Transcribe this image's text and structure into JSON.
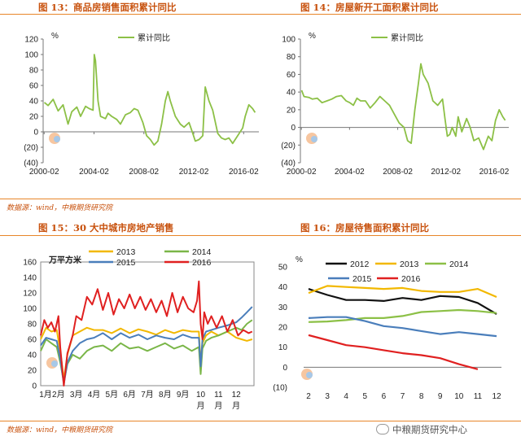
{
  "page": {
    "source_top": "数据源：wind，中粮期货研究院",
    "source_bottom": "数据源：wind，中粮期货研究院",
    "watermark": "中粮期货研究中心",
    "colors": {
      "accent": "#c8520e",
      "rule": "#e8862a"
    }
  },
  "chart_data": [
    {
      "id": "fig13",
      "type": "line",
      "title": "图 13：商品房销售面积累计同比",
      "ylabel": "%",
      "ylim": [
        -40,
        120
      ],
      "yticks": [
        "120",
        "100",
        "80",
        "60",
        "40",
        "20",
        "0",
        "(20)",
        "(40)"
      ],
      "ytick_values": [
        120,
        100,
        80,
        60,
        40,
        20,
        0,
        -20,
        -40
      ],
      "xlim": [
        2000.0,
        2017.3
      ],
      "xticks": [
        "2000-02",
        "2004-02",
        "2008-02",
        "2012-02",
        "2016-02"
      ],
      "xtick_values": [
        2000.08,
        2004.08,
        2008.08,
        2012.08,
        2016.08
      ],
      "series": [
        {
          "name": "累计同比",
          "color": "#8cc046",
          "x": [
            2000.1,
            2000.4,
            2000.8,
            2001.2,
            2001.6,
            2002.0,
            2002.3,
            2002.7,
            2003.0,
            2003.4,
            2003.7,
            2004.0,
            2004.1,
            2004.2,
            2004.4,
            2004.6,
            2005.0,
            2005.2,
            2005.5,
            2005.9,
            2006.2,
            2006.6,
            2007.0,
            2007.3,
            2007.6,
            2008.0,
            2008.3,
            2008.6,
            2008.9,
            2009.2,
            2009.5,
            2009.8,
            2010.0,
            2010.2,
            2010.6,
            2011.0,
            2011.3,
            2011.7,
            2012.0,
            2012.2,
            2012.5,
            2012.8,
            2013.0,
            2013.3,
            2013.6,
            2014.0,
            2014.3,
            2014.6,
            2014.9,
            2015.2,
            2015.6,
            2016.0,
            2016.2,
            2016.5,
            2016.8,
            2017.0
          ],
          "y": [
            38,
            34,
            42,
            27,
            35,
            10,
            26,
            32,
            20,
            33,
            30,
            28,
            100,
            92,
            40,
            20,
            17,
            24,
            20,
            16,
            10,
            22,
            25,
            30,
            28,
            12,
            -5,
            -10,
            -17,
            -12,
            10,
            40,
            52,
            40,
            20,
            10,
            6,
            12,
            -2,
            -12,
            -10,
            -5,
            58,
            40,
            28,
            -2,
            -8,
            -10,
            -8,
            -15,
            -5,
            5,
            20,
            35,
            30,
            25
          ]
        }
      ]
    },
    {
      "id": "fig14",
      "type": "line",
      "title": "图 14：房屋新开工面积累计同比",
      "ylabel": "%",
      "ylim": [
        -40,
        100
      ],
      "yticks": [
        "100",
        "80",
        "60",
        "40",
        "20",
        "0",
        "(20)",
        "(40)"
      ],
      "ytick_values": [
        100,
        80,
        60,
        40,
        20,
        0,
        -20,
        -40
      ],
      "xlim": [
        2000.0,
        2017.3
      ],
      "xticks": [
        "2000-02",
        "2004-02",
        "2008-02",
        "2012-02",
        "2016-02"
      ],
      "xtick_values": [
        2000.08,
        2004.08,
        2008.08,
        2012.08,
        2016.08
      ],
      "series": [
        {
          "name": "累计同比",
          "color": "#8cc046",
          "x": [
            2000.1,
            2000.3,
            2000.7,
            2001.0,
            2001.4,
            2001.8,
            2002.2,
            2002.6,
            2003.0,
            2003.4,
            2003.8,
            2004.1,
            2004.4,
            2004.7,
            2005.0,
            2005.4,
            2005.8,
            2006.2,
            2006.6,
            2007.0,
            2007.4,
            2007.8,
            2008.2,
            2008.6,
            2008.9,
            2009.2,
            2009.5,
            2009.8,
            2010.0,
            2010.2,
            2010.6,
            2011.0,
            2011.4,
            2011.8,
            2012.0,
            2012.2,
            2012.4,
            2012.6,
            2012.9,
            2013.1,
            2013.4,
            2013.8,
            2014.1,
            2014.4,
            2014.8,
            2015.2,
            2015.6,
            2015.9,
            2016.2,
            2016.5,
            2016.8,
            2017.0
          ],
          "y": [
            42,
            35,
            34,
            32,
            33,
            28,
            30,
            32,
            35,
            36,
            30,
            28,
            25,
            33,
            30,
            30,
            22,
            28,
            35,
            30,
            25,
            15,
            5,
            0,
            -15,
            -18,
            20,
            50,
            72,
            60,
            50,
            30,
            25,
            32,
            10,
            -10,
            -8,
            0,
            -10,
            12,
            -5,
            10,
            0,
            -15,
            -12,
            -25,
            -10,
            -15,
            8,
            20,
            12,
            8
          ]
        }
      ]
    },
    {
      "id": "fig15",
      "type": "line",
      "title": "图 15：30 大中城市房地产销售",
      "ylabel": "万平方米",
      "ylim": [
        0,
        160
      ],
      "yticks": [
        "160",
        "140",
        "120",
        "100",
        "80",
        "60",
        "40",
        "20",
        "0"
      ],
      "ytick_values": [
        160,
        140,
        120,
        100,
        80,
        60,
        40,
        20,
        0
      ],
      "xlim": [
        1,
        13
      ],
      "xticks": [
        "1月",
        "2月",
        "3月",
        "4月",
        "5月",
        "6月",
        "7月",
        "8月",
        "9月",
        "10",
        "月",
        "11",
        "月",
        "12",
        "月"
      ],
      "legend": [
        "2013",
        "2014",
        "2015",
        "2016"
      ],
      "series": [
        {
          "name": "2013",
          "color": "#f2b800",
          "x": [
            1.0,
            1.3,
            1.6,
            1.9,
            2.1,
            2.3,
            2.5,
            2.8,
            3.2,
            3.6,
            4.0,
            4.5,
            5.0,
            5.5,
            6.0,
            6.5,
            7.0,
            7.5,
            8.0,
            8.5,
            9.0,
            9.5,
            9.9,
            10.0,
            10.1,
            10.3,
            10.6,
            11.0,
            11.5,
            12.0,
            12.3,
            12.6,
            12.9
          ],
          "y": [
            60,
            75,
            70,
            72,
            45,
            8,
            40,
            65,
            70,
            75,
            72,
            72,
            68,
            74,
            68,
            73,
            70,
            66,
            72,
            68,
            72,
            70,
            70,
            30,
            55,
            65,
            70,
            65,
            70,
            62,
            60,
            58,
            60
          ]
        },
        {
          "name": "2014",
          "color": "#7ab648",
          "x": [
            1.0,
            1.3,
            1.6,
            1.9,
            2.1,
            2.3,
            2.5,
            2.8,
            3.2,
            3.6,
            4.0,
            4.5,
            5.0,
            5.5,
            6.0,
            6.5,
            7.0,
            7.5,
            8.0,
            8.5,
            9.0,
            9.5,
            9.9,
            10.0,
            10.1,
            10.3,
            10.6,
            11.0,
            11.5,
            12.0,
            12.3,
            12.6,
            12.9
          ],
          "y": [
            45,
            60,
            55,
            50,
            30,
            5,
            28,
            40,
            35,
            45,
            50,
            52,
            45,
            55,
            48,
            50,
            45,
            50,
            55,
            48,
            52,
            45,
            50,
            15,
            48,
            58,
            62,
            65,
            70,
            75,
            72,
            80,
            85
          ]
        },
        {
          "name": "2015",
          "color": "#4a7ebb",
          "x": [
            1.0,
            1.3,
            1.6,
            1.9,
            2.1,
            2.3,
            2.5,
            2.8,
            3.2,
            3.6,
            4.0,
            4.5,
            5.0,
            5.5,
            6.0,
            6.5,
            7.0,
            7.5,
            8.0,
            8.5,
            9.0,
            9.5,
            9.9,
            10.0,
            10.1,
            10.3,
            10.6,
            11.0,
            11.5,
            12.0,
            12.3,
            12.6,
            12.9
          ],
          "y": [
            52,
            62,
            60,
            58,
            35,
            2,
            30,
            45,
            55,
            60,
            62,
            68,
            60,
            68,
            62,
            66,
            60,
            65,
            62,
            60,
            66,
            62,
            62,
            25,
            60,
            70,
            72,
            75,
            78,
            82,
            88,
            95,
            102
          ]
        },
        {
          "name": "2016",
          "color": "#e02020",
          "x": [
            1.0,
            1.2,
            1.4,
            1.6,
            1.8,
            2.0,
            2.1,
            2.3,
            2.5,
            2.8,
            3.0,
            3.3,
            3.6,
            3.9,
            4.2,
            4.5,
            4.8,
            5.1,
            5.4,
            5.7,
            6.0,
            6.3,
            6.6,
            6.9,
            7.2,
            7.5,
            7.8,
            8.1,
            8.4,
            8.7,
            9.0,
            9.3,
            9.6,
            9.8,
            9.9,
            10.0,
            10.1,
            10.2,
            10.4,
            10.6,
            10.9,
            11.2,
            11.5,
            11.8,
            12.1,
            12.4,
            12.7,
            12.9
          ],
          "y": [
            65,
            85,
            75,
            82,
            70,
            90,
            50,
            0,
            42,
            65,
            90,
            85,
            115,
            105,
            125,
            98,
            120,
            92,
            112,
            100,
            118,
            100,
            115,
            98,
            112,
            95,
            110,
            90,
            120,
            95,
            115,
            100,
            95,
            110,
            135,
            80,
            60,
            95,
            80,
            90,
            75,
            90,
            70,
            85,
            65,
            72,
            68,
            70
          ]
        }
      ]
    },
    {
      "id": "fig16",
      "type": "line",
      "title": "图 16：房屋待售面积累计同比",
      "ylabel": "%",
      "ylim": [
        -10,
        50
      ],
      "yticks": [
        "50",
        "40",
        "30",
        "20",
        "10",
        "0",
        "(10)"
      ],
      "ytick_values": [
        50,
        40,
        30,
        20,
        10,
        0,
        -10
      ],
      "xlim": [
        2,
        12
      ],
      "xticks": [
        "2",
        "3",
        "4",
        "5",
        "6",
        "7",
        "8",
        "9",
        "10",
        "11",
        "12"
      ],
      "xtick_values": [
        2,
        3,
        4,
        5,
        6,
        7,
        8,
        9,
        10,
        11,
        12
      ],
      "legend": [
        "2012",
        "2013",
        "2014",
        "2015",
        "2016"
      ],
      "series": [
        {
          "name": "2012",
          "color": "#111111",
          "x": [
            2,
            3,
            4,
            5,
            6,
            7,
            8,
            9,
            10,
            11,
            12
          ],
          "y": [
            39,
            36,
            33.5,
            33.5,
            33,
            34.5,
            33.5,
            35.5,
            35,
            32,
            26.5
          ]
        },
        {
          "name": "2013",
          "color": "#f2b800",
          "x": [
            2,
            3,
            4,
            5,
            6,
            7,
            8,
            9,
            10,
            11,
            12
          ],
          "y": [
            37,
            40.5,
            40,
            39.5,
            39,
            39.5,
            38,
            37.5,
            37.5,
            39,
            35
          ]
        },
        {
          "name": "2014",
          "color": "#8cc046",
          "x": [
            2,
            3,
            4,
            5,
            6,
            7,
            8,
            9,
            10,
            11,
            12
          ],
          "y": [
            22.5,
            22.8,
            23.5,
            24.5,
            24.5,
            25.5,
            27.5,
            28,
            28.5,
            28,
            27
          ]
        },
        {
          "name": "2015",
          "color": "#4a7ebb",
          "x": [
            2,
            3,
            4,
            5,
            6,
            7,
            8,
            9,
            10,
            11,
            12
          ],
          "y": [
            24.5,
            25,
            25,
            23,
            20.5,
            19.5,
            18,
            16.5,
            17.5,
            16.5,
            15.5
          ]
        },
        {
          "name": "2016",
          "color": "#e02020",
          "x": [
            2,
            3,
            4,
            5,
            6,
            7,
            8,
            9,
            10,
            11
          ],
          "y": [
            16,
            13.5,
            11,
            10,
            8.5,
            7,
            6,
            4.5,
            1.5,
            -1
          ]
        }
      ]
    }
  ]
}
